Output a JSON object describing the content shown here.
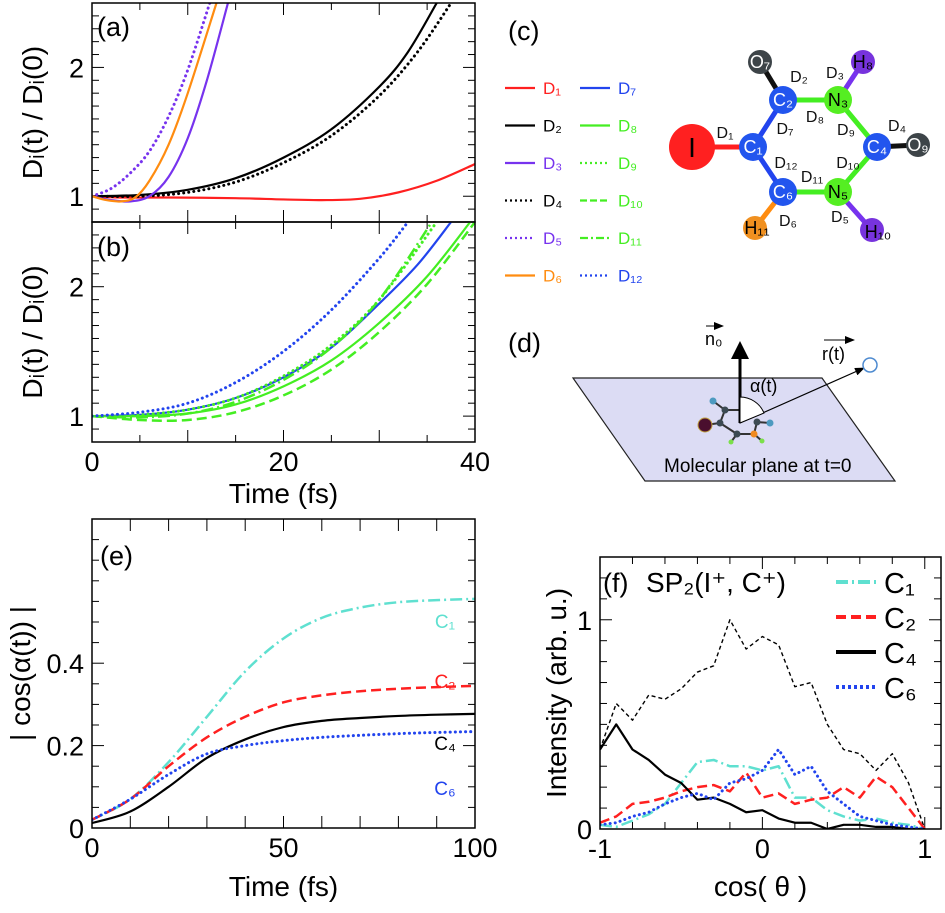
{
  "panel_labels": {
    "a": "(a)",
    "b": "(b)",
    "c": "(c)",
    "d": "(d)",
    "e": "(e)",
    "f": "(f)"
  },
  "chart_data": [
    {
      "id": "a",
      "type": "line",
      "xlim": [
        0,
        40
      ],
      "ylim": [
        0.8,
        2.5
      ],
      "xticks": [
        0,
        20,
        40
      ],
      "yticks": [
        1,
        2
      ],
      "ylabel": "Dᵢ(t) / Dᵢ(0)",
      "xlabel": "",
      "series": [
        {
          "name": "D₁",
          "color": "#ff2020",
          "dash": "solid",
          "x": [
            0,
            3,
            8,
            15,
            20,
            24,
            28,
            32,
            36,
            40
          ],
          "y": [
            1,
            0.99,
            0.99,
            0.985,
            0.975,
            0.97,
            0.98,
            1.03,
            1.12,
            1.25
          ]
        },
        {
          "name": "D₂",
          "color": "#000000",
          "dash": "solid",
          "x": [
            0,
            5,
            10,
            15,
            20,
            25,
            30,
            33,
            36
          ],
          "y": [
            1,
            1.01,
            1.05,
            1.14,
            1.3,
            1.52,
            1.85,
            2.12,
            2.5
          ]
        },
        {
          "name": "D₄",
          "color": "#000000",
          "dash": "dotted",
          "x": [
            0,
            5,
            10,
            15,
            20,
            25,
            30,
            34,
            37.5
          ],
          "y": [
            1,
            1,
            1.03,
            1.11,
            1.26,
            1.47,
            1.78,
            2.12,
            2.5
          ]
        },
        {
          "name": "D₃",
          "color": "#7733ee",
          "dash": "solid",
          "x": [
            0,
            2,
            4,
            6,
            8,
            10,
            12,
            14.2
          ],
          "y": [
            1,
            0.97,
            0.96,
            1.0,
            1.15,
            1.45,
            1.9,
            2.5
          ]
        },
        {
          "name": "D₅",
          "color": "#7733ee",
          "dash": "dotted",
          "x": [
            0,
            2,
            4,
            6,
            8,
            10,
            12.3
          ],
          "y": [
            1,
            1.06,
            1.18,
            1.35,
            1.62,
            1.98,
            2.5
          ]
        },
        {
          "name": "D₆",
          "color": "#ff8c10",
          "dash": "solid",
          "x": [
            0,
            1.5,
            3,
            4.5,
            6,
            8,
            10,
            13
          ],
          "y": [
            1,
            0.97,
            0.96,
            0.99,
            1.12,
            1.4,
            1.8,
            2.5
          ]
        }
      ]
    },
    {
      "id": "b",
      "type": "line",
      "xlim": [
        0,
        40
      ],
      "ylim": [
        0.8,
        2.5
      ],
      "xticks": [
        0,
        20,
        40
      ],
      "yticks": [
        1,
        2
      ],
      "ylabel": "Dᵢ(t) / Dᵢ(0)",
      "xlabel": "Time (fs)",
      "series": [
        {
          "name": "D₇",
          "color": "#2244ee",
          "dash": "solid",
          "x": [
            0,
            5,
            10,
            15,
            20,
            25,
            30,
            34,
            37.5
          ],
          "y": [
            1,
            1.01,
            1.05,
            1.14,
            1.3,
            1.53,
            1.87,
            2.17,
            2.5
          ]
        },
        {
          "name": "D₈",
          "color": "#44ee22",
          "dash": "solid",
          "x": [
            0,
            5,
            10,
            15,
            20,
            25,
            30,
            35,
            39.5
          ],
          "y": [
            1,
            1,
            1.02,
            1.09,
            1.23,
            1.43,
            1.72,
            2.08,
            2.5
          ]
        },
        {
          "name": "D₉",
          "color": "#44ee22",
          "dash": "dotted",
          "x": [
            0,
            5,
            10,
            15,
            20,
            25,
            30,
            36
          ],
          "y": [
            1,
            1.01,
            1.05,
            1.14,
            1.31,
            1.55,
            1.9,
            2.5
          ]
        },
        {
          "name": "D₁₀",
          "color": "#44ee22",
          "dash": "dashed",
          "x": [
            0,
            5,
            10,
            15,
            20,
            25,
            30,
            35,
            40
          ],
          "y": [
            1,
            0.97,
            0.97,
            1.03,
            1.16,
            1.36,
            1.65,
            2.02,
            2.5
          ]
        },
        {
          "name": "D₁₁",
          "color": "#44ee22",
          "dash": "dashdot",
          "x": [
            0,
            5,
            10,
            15,
            20,
            25,
            30,
            35.5
          ],
          "y": [
            1,
            0.99,
            1.02,
            1.11,
            1.28,
            1.53,
            1.9,
            2.5
          ]
        },
        {
          "name": "D₁₂",
          "color": "#2244ee",
          "dash": "dotted",
          "x": [
            0,
            5,
            10,
            15,
            20,
            25,
            30,
            33
          ],
          "y": [
            1,
            1.03,
            1.1,
            1.26,
            1.5,
            1.82,
            2.22,
            2.5
          ]
        }
      ]
    },
    {
      "id": "e",
      "type": "line",
      "xlim": [
        0,
        100
      ],
      "ylim": [
        0,
        0.75
      ],
      "xticks": [
        0,
        50,
        100
      ],
      "yticks": [
        0,
        0.2,
        0.4
      ],
      "ylabel": "| cos(α(t)) |",
      "xlabel": "Time (fs)",
      "series": [
        {
          "name": "C₁",
          "color": "#5fe0d0",
          "dash": "dashdot",
          "x": [
            0,
            10,
            20,
            30,
            40,
            50,
            60,
            70,
            80,
            90,
            100
          ],
          "y": [
            0.02,
            0.07,
            0.16,
            0.27,
            0.38,
            0.46,
            0.51,
            0.535,
            0.548,
            0.553,
            0.556
          ]
        },
        {
          "name": "C₂",
          "color": "#ff2020",
          "dash": "dashed",
          "x": [
            0,
            10,
            20,
            30,
            40,
            50,
            60,
            70,
            80,
            90,
            100
          ],
          "y": [
            0.02,
            0.07,
            0.15,
            0.22,
            0.27,
            0.305,
            0.322,
            0.332,
            0.338,
            0.342,
            0.345
          ]
        },
        {
          "name": "C₄",
          "color": "#000000",
          "dash": "solid",
          "x": [
            0,
            10,
            20,
            30,
            40,
            50,
            60,
            70,
            80,
            90,
            100
          ],
          "y": [
            0.012,
            0.04,
            0.1,
            0.17,
            0.215,
            0.245,
            0.26,
            0.267,
            0.272,
            0.275,
            0.277
          ]
        },
        {
          "name": "C₆",
          "color": "#2244ee",
          "dash": "dotted",
          "x": [
            0,
            10,
            20,
            30,
            40,
            50,
            60,
            70,
            80,
            90,
            100
          ],
          "y": [
            0.02,
            0.07,
            0.13,
            0.18,
            0.2,
            0.212,
            0.22,
            0.225,
            0.229,
            0.232,
            0.234
          ]
        }
      ]
    },
    {
      "id": "f",
      "type": "line",
      "title": "SP₂(I⁺, C⁺)",
      "xlim": [
        -1,
        1.1
      ],
      "ylim": [
        0,
        1.3
      ],
      "xticks": [
        -1,
        0,
        1
      ],
      "yticks": [
        0,
        1
      ],
      "ylabel": "Intensity (arb. u.)",
      "xlabel": "cos( θ )",
      "legend": "top-right",
      "x": [
        -1,
        -0.9,
        -0.8,
        -0.7,
        -0.6,
        -0.5,
        -0.4,
        -0.3,
        -0.2,
        -0.1,
        0,
        0.1,
        0.2,
        0.3,
        0.4,
        0.5,
        0.6,
        0.7,
        0.8,
        0.9,
        1
      ],
      "series": [
        {
          "name": "",
          "color": "#000000",
          "dash": "thin-dashed",
          "y": [
            0.38,
            0.6,
            0.52,
            0.64,
            0.62,
            0.67,
            0.75,
            0.78,
            1.0,
            0.86,
            0.92,
            0.88,
            0.68,
            0.7,
            0.5,
            0.38,
            0.36,
            0.28,
            0.36,
            0.22,
            0
          ]
        },
        {
          "name": "C₁",
          "color": "#5fe0d0",
          "dash": "dashdot",
          "y": [
            0.02,
            0.01,
            0.04,
            0.07,
            0.12,
            0.22,
            0.32,
            0.33,
            0.3,
            0.3,
            0.28,
            0.3,
            0.15,
            0.15,
            0.09,
            0.06,
            0.04,
            0.05,
            0.03,
            0.02,
            0
          ]
        },
        {
          "name": "C₂",
          "color": "#ff2020",
          "dash": "dashed",
          "y": [
            0.03,
            0.06,
            0.12,
            0.13,
            0.15,
            0.18,
            0.2,
            0.21,
            0.18,
            0.27,
            0.15,
            0.17,
            0.12,
            0.14,
            0.15,
            0.2,
            0.15,
            0.25,
            0.2,
            0.1,
            0
          ]
        },
        {
          "name": "C₄",
          "color": "#000000",
          "dash": "solid",
          "y": [
            0.38,
            0.5,
            0.38,
            0.33,
            0.26,
            0.22,
            0.14,
            0.15,
            0.12,
            0.08,
            0.09,
            0.05,
            0.03,
            0.03,
            0.0,
            0.02,
            0.02,
            0.01,
            0.01,
            0.0,
            0
          ]
        },
        {
          "name": "C₆",
          "color": "#2244ee",
          "dash": "dotted",
          "y": [
            0.02,
            0.03,
            0.06,
            0.08,
            0.12,
            0.15,
            0.17,
            0.14,
            0.22,
            0.24,
            0.28,
            0.38,
            0.26,
            0.3,
            0.18,
            0.12,
            0.06,
            0.04,
            0.02,
            0.01,
            0
          ]
        }
      ]
    }
  ],
  "legend_c": {
    "col1": [
      {
        "label": "D₁",
        "color": "#ff2020",
        "dash": "solid"
      },
      {
        "label": "D₂",
        "color": "#000000",
        "dash": "solid"
      },
      {
        "label": "D₃",
        "color": "#7733ee",
        "dash": "solid"
      },
      {
        "label": "D₄",
        "color": "#000000",
        "dash": "dotted"
      },
      {
        "label": "D₅",
        "color": "#7733ee",
        "dash": "dotted"
      },
      {
        "label": "D₆",
        "color": "#ff8c10",
        "dash": "solid"
      }
    ],
    "col2": [
      {
        "label": "D₇",
        "color": "#2244ee",
        "dash": "solid"
      },
      {
        "label": "D₈",
        "color": "#44ee22",
        "dash": "solid"
      },
      {
        "label": "D₉",
        "color": "#44ee22",
        "dash": "dotted"
      },
      {
        "label": "D₁₀",
        "color": "#44ee22",
        "dash": "dashed"
      },
      {
        "label": "D₁₁",
        "color": "#44ee22",
        "dash": "dashdot"
      },
      {
        "label": "D₁₂",
        "color": "#2244ee",
        "dash": "dotted"
      }
    ]
  },
  "molecule": {
    "atoms": {
      "I": "I",
      "C1": "C₁",
      "C2": "C₂",
      "N3": "N₃",
      "C4": "C₄",
      "N5": "N₅",
      "C6": "C₆",
      "O7": "O₇",
      "H8": "H₈",
      "O9": "O₉",
      "H10": "H₁₀",
      "H11": "H₁₁"
    },
    "bonds": {
      "D1": "D₁",
      "D2": "D₂",
      "D3": "D₃",
      "D4": "D₄",
      "D5": "D₅",
      "D6": "D₆",
      "D7": "D₇",
      "D8": "D₈",
      "D9": "D₉",
      "D10": "D₁₀",
      "D11": "D₁₁",
      "D12": "D₁₂"
    }
  },
  "diagram_d": {
    "normal_label": "n₀",
    "vector_label": "r(t)",
    "angle_label": "α(t)",
    "plane_label": "Molecular plane at t=0"
  },
  "annotations_e": [
    "C₁",
    "C₂",
    "C₄",
    "C₆"
  ]
}
